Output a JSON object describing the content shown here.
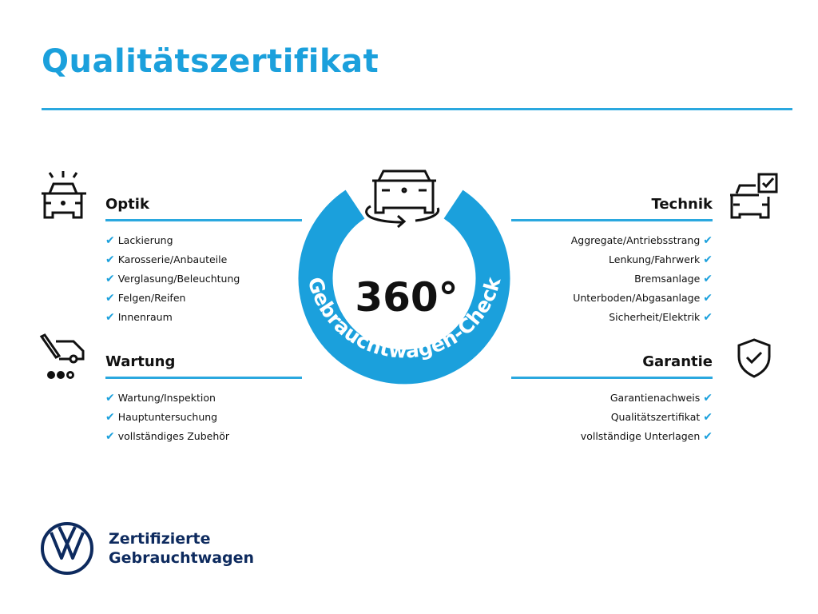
{
  "title": "Qualitätszertifikat",
  "colors": {
    "accent": "#1ba0dc",
    "brand_dark": "#0d2a5e"
  },
  "center": {
    "big": "360°",
    "ring_text": "Gebrauchtwagen-Check",
    "icon": "car-rotate-icon"
  },
  "sections": {
    "optik": {
      "title": "Optik",
      "icon": "car-lights-icon",
      "items": [
        "Lackierung",
        "Karosserie/Anbauteile",
        "Verglasung/Beleuchtung",
        "Felgen/Reifen",
        "Innenraum"
      ]
    },
    "wartung": {
      "title": "Wartung",
      "icon": "service-van-icon",
      "items": [
        "Wartung/Inspektion",
        "Hauptuntersuchung",
        "vollständiges Zubehör"
      ]
    },
    "technik": {
      "title": "Technik",
      "icon": "car-checkbox-icon",
      "items": [
        "Aggregate/Antriebsstrang",
        "Lenkung/Fahrwerk",
        "Bremsanlage",
        "Unterboden/Abgasanlage",
        "Sicherheit/Elektrik"
      ]
    },
    "garantie": {
      "title": "Garantie",
      "icon": "shield-check-icon",
      "items": [
        "Garantienachweis",
        "Qualitätszertifikat",
        "vollständige Unterlagen"
      ]
    }
  },
  "footer": {
    "line1": "Zertifizierte",
    "line2": "Gebrauchtwagen",
    "logo": "VW"
  },
  "check": "✔"
}
